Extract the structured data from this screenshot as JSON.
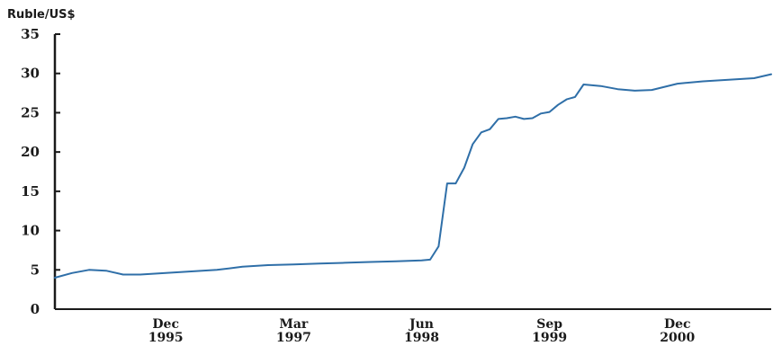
{
  "chart_data": {
    "type": "line",
    "title": "",
    "ylabel": "Ruble/US$",
    "xlabel": "",
    "ylim": [
      0,
      35
    ],
    "yticks": [
      "0",
      "5",
      "10",
      "15",
      "20",
      "25",
      "30",
      "35"
    ],
    "xticks": [
      {
        "month": "Dec",
        "year": "1995"
      },
      {
        "month": "Mar",
        "year": "1997"
      },
      {
        "month": "Jun",
        "year": "1998"
      },
      {
        "month": "Sep",
        "year": "1999"
      },
      {
        "month": "Dec",
        "year": "2000"
      }
    ],
    "grid": false,
    "line_color": "#2f6fa8",
    "series": [
      {
        "x": [
          "1994-11",
          "1995-01",
          "1995-03",
          "1995-05",
          "1995-07",
          "1995-09",
          "1995-12",
          "1996-03",
          "1996-06",
          "1996-09",
          "1996-12",
          "1997-03",
          "1997-06",
          "1997-09",
          "1997-12",
          "1998-03",
          "1998-06",
          "1998-07",
          "1998-08",
          "1998-09",
          "1998-10",
          "1998-11",
          "1998-12",
          "1999-01",
          "1999-02",
          "1999-03",
          "1999-04",
          "1999-05",
          "1999-06",
          "1999-07",
          "1999-08",
          "1999-09",
          "1999-10",
          "1999-11",
          "1999-12",
          "2000-01",
          "2000-03",
          "2000-05",
          "2000-07",
          "2000-09",
          "2000-12",
          "2001-03",
          "2001-06",
          "2001-09",
          "2001-11"
        ],
        "values": [
          4.0,
          4.6,
          5.0,
          4.9,
          4.4,
          4.4,
          4.6,
          4.8,
          5.0,
          5.4,
          5.6,
          5.7,
          5.8,
          5.9,
          6.0,
          6.1,
          6.2,
          6.3,
          8.0,
          16.0,
          16.0,
          18.0,
          21.0,
          22.5,
          22.9,
          24.2,
          24.3,
          24.5,
          24.2,
          24.3,
          24.9,
          25.1,
          26.0,
          26.7,
          27.0,
          28.6,
          28.4,
          28.0,
          27.8,
          27.9,
          28.7,
          29.0,
          29.2,
          29.4,
          29.9
        ]
      }
    ]
  }
}
